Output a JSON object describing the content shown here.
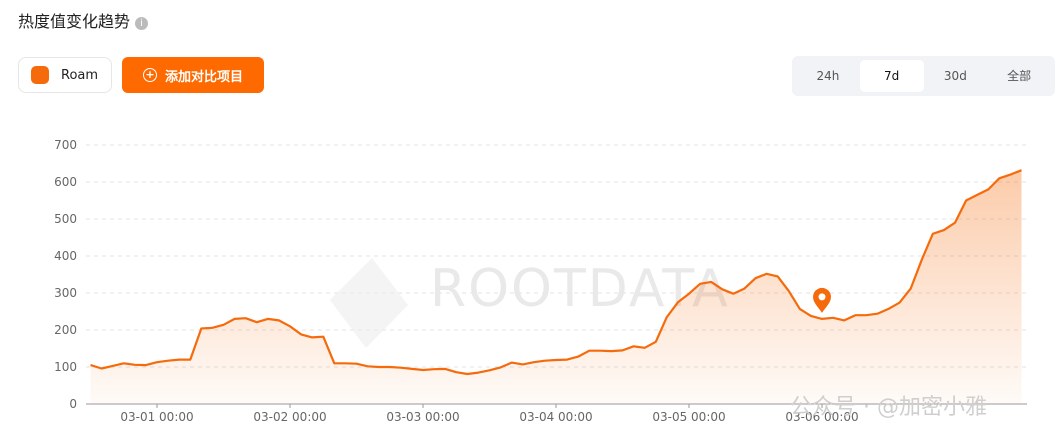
{
  "header": {
    "title": "热度值变化趋势"
  },
  "controls": {
    "compare_button": "添加对比项目",
    "ranges": [
      "24h",
      "7d",
      "30d",
      "全部"
    ],
    "selected_range": "7d"
  },
  "watermarks": [
    "ROOTDATA",
    "公众号 · @加密小雅"
  ],
  "chart_data": {
    "type": "line",
    "categories": [
      null,
      null,
      null,
      null,
      null,
      null,
      "03-01 00:00",
      null,
      null,
      null,
      null,
      null,
      null,
      null,
      null,
      null,
      null,
      null,
      "03-02 00:00",
      null,
      null,
      null,
      null,
      null,
      null,
      null,
      null,
      null,
      null,
      null,
      "03-03 00:00",
      null,
      null,
      null,
      null,
      null,
      null,
      null,
      null,
      null,
      null,
      null,
      "03-04 00:00",
      null,
      null,
      null,
      null,
      null,
      null,
      null,
      null,
      null,
      null,
      null,
      "03-05 00:00",
      null,
      null,
      null,
      null,
      null,
      null,
      null,
      null,
      null,
      null,
      null,
      "03-06 00:00",
      null,
      null,
      null,
      null,
      null,
      null,
      null,
      null,
      null,
      null,
      null,
      null,
      null,
      null,
      null,
      null,
      null,
      null
    ],
    "series": [
      {
        "name": "Roam",
        "color": "#f56b0c",
        "values": [
          105,
          96,
          103,
          110,
          106,
          105,
          113,
          117,
          120,
          120,
          204,
          206,
          214,
          230,
          232,
          221,
          230,
          226,
          210,
          188,
          180,
          182,
          110,
          110,
          109,
          102,
          100,
          100,
          98,
          95,
          92,
          94,
          95,
          86,
          81,
          85,
          91,
          99,
          112,
          107,
          113,
          117,
          119,
          120,
          128,
          144,
          144,
          143,
          145,
          156,
          152,
          168,
          235,
          275,
          298,
          325,
          330,
          310,
          298,
          312,
          340,
          352,
          345,
          305,
          257,
          238,
          230,
          233,
          226,
          240,
          240,
          244,
          257,
          274,
          312,
          390,
          460,
          470,
          490,
          550,
          565,
          580,
          610,
          620,
          632
        ]
      }
    ],
    "ylim": [
      0,
      700
    ],
    "yticks": [
      0,
      100,
      200,
      300,
      400,
      500,
      600,
      700
    ],
    "grid": true
  }
}
